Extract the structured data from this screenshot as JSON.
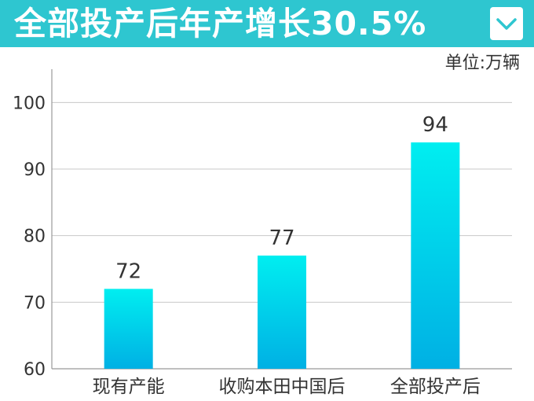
{
  "header": {
    "title": "全部投产后年产增长30.5%"
  },
  "icons": {
    "dropdown": "chevron-down-icon"
  },
  "colors": {
    "header_bg": "#2ec6d0",
    "bar_top": "#00eef0",
    "bar_bottom": "#00b0e4",
    "grid": "#c8c8c8",
    "text": "#333333"
  },
  "chart_data": {
    "type": "bar",
    "categories": [
      "现有产能",
      "收购本田中国后",
      "全部投产后"
    ],
    "values": [
      72,
      77,
      94
    ],
    "data_labels": [
      "72",
      "77",
      "94"
    ],
    "unit": "单位:万辆",
    "ylim": [
      60,
      105
    ],
    "yticks": [
      60,
      70,
      80,
      90,
      100
    ],
    "ytick_labels": [
      "60",
      "70",
      "80",
      "90",
      "100"
    ],
    "grid": true,
    "legend": false
  }
}
